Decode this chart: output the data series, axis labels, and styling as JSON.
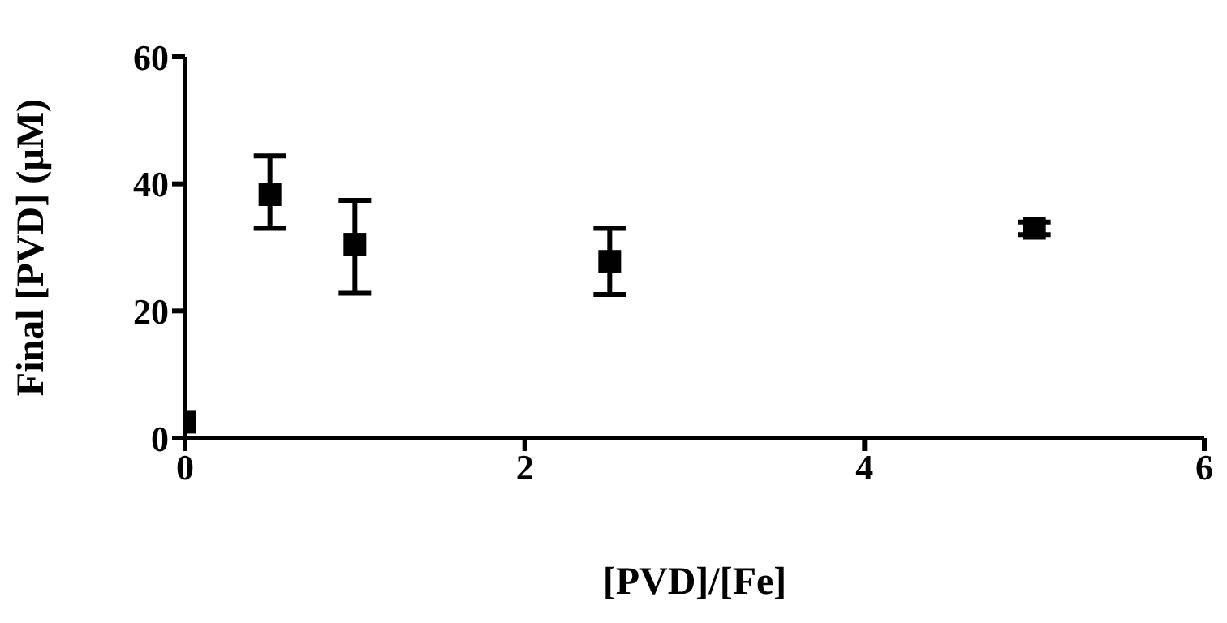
{
  "chart_data": {
    "type": "scatter",
    "xlabel": "[PVD]/[Fe]",
    "ylabel": "Final [PVD] (µM)",
    "x": [
      0,
      0.5,
      1,
      2.5,
      5
    ],
    "series": [
      {
        "color": "#000000",
        "values": [
          2.5,
          38.3,
          30.5,
          27.8,
          33.0
        ],
        "errors": [
          null,
          [
            33.0,
            44.4
          ],
          [
            22.8,
            37.4
          ],
          [
            22.6,
            33.0
          ],
          1
        ]
      }
    ],
    "xlim": [
      0,
      6
    ],
    "xticks": [
      0,
      2,
      4,
      6
    ],
    "ylim": [
      0,
      60
    ],
    "yticks": [
      0,
      20,
      40,
      60
    ],
    "grid": false,
    "legend": false,
    "marker": "square"
  }
}
